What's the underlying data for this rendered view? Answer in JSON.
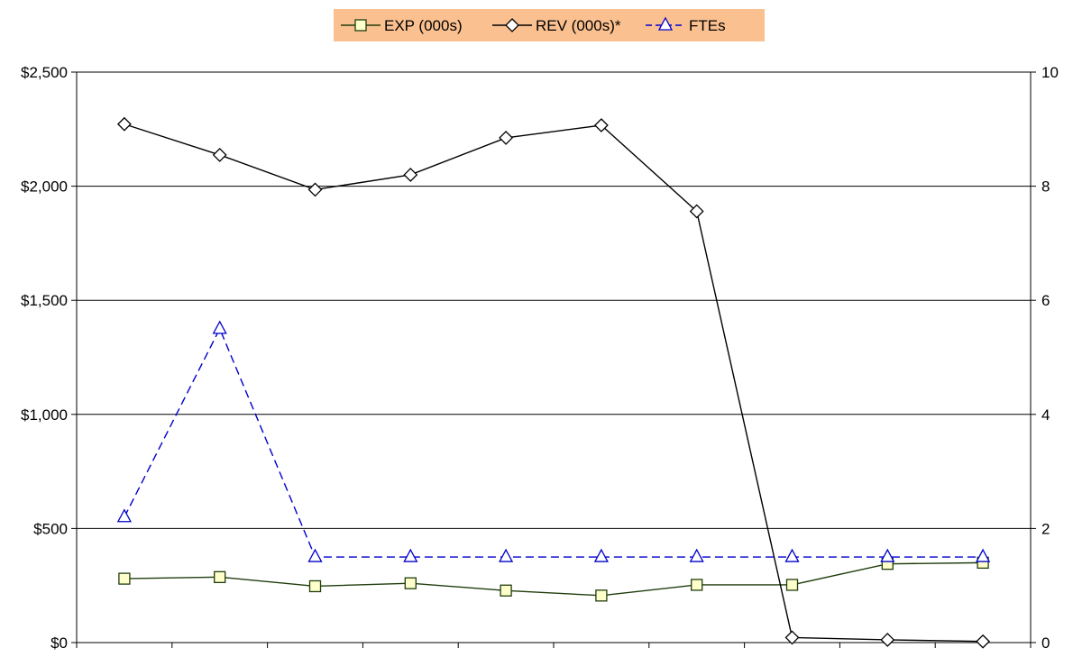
{
  "chart_data": {
    "type": "line",
    "x": [
      1,
      2,
      3,
      4,
      5,
      6,
      7,
      8,
      9,
      10
    ],
    "left_axis": {
      "ylim": [
        0,
        2500
      ],
      "ticks": [
        0,
        500,
        1000,
        1500,
        2000,
        2500
      ],
      "tick_labels": [
        "$0",
        "$500",
        "$1,000",
        "$1,500",
        "$2,000",
        "$2,500"
      ]
    },
    "right_axis": {
      "ylim": [
        0,
        10
      ],
      "ticks": [
        0,
        2,
        4,
        6,
        8,
        10
      ],
      "tick_labels": [
        "0",
        "2",
        "4",
        "6",
        "8",
        "10"
      ]
    },
    "grid": true,
    "legend_position": "top-center",
    "series": [
      {
        "name": "EXP (000s)",
        "axis": "left",
        "marker": "square",
        "line_style": "solid",
        "color": "#1f3d0c",
        "values": [
          280,
          287,
          247,
          260,
          228,
          206,
          253,
          253,
          345,
          350
        ]
      },
      {
        "name": "REV (000s)*",
        "axis": "left",
        "marker": "diamond",
        "line_style": "solid",
        "color": "#000000",
        "values": [
          2272,
          2137,
          1985,
          2050,
          2212,
          2267,
          1890,
          22,
          12,
          5
        ]
      },
      {
        "name": "FTEs",
        "axis": "right",
        "marker": "triangle",
        "line_style": "dashed",
        "color": "#0000cc",
        "values": [
          2.2,
          5.5,
          1.5,
          1.5,
          1.5,
          1.5,
          1.5,
          1.5,
          1.5,
          1.5
        ]
      }
    ],
    "colors": {
      "legend_background": "#fac090",
      "exp_marker_fill": "#ffffcc",
      "gridline": "#000000"
    }
  }
}
